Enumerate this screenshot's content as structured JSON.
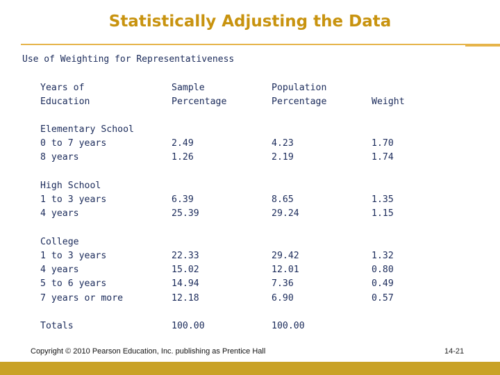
{
  "title": "Statistically Adjusting the Data",
  "subtitle": "Use of Weighting for Representativeness",
  "table": {
    "headers": {
      "education": [
        "Years of",
        "Education"
      ],
      "sample": [
        "Sample",
        "Percentage"
      ],
      "population": [
        "Population",
        "Percentage"
      ],
      "weight": "Weight"
    },
    "groups": [
      {
        "name": "Elementary School",
        "rows": [
          {
            "label": "0 to 7 years",
            "sample": "2.49",
            "population": "4.23",
            "weight": "1.70"
          },
          {
            "label": "8 years",
            "sample": "1.26",
            "population": "2.19",
            "weight": "1.74"
          }
        ]
      },
      {
        "name": "High School",
        "rows": [
          {
            "label": "1 to 3 years",
            "sample": "6.39",
            "population": "8.65",
            "weight": "1.35"
          },
          {
            "label": "4 years",
            "sample": "25.39",
            "population": "29.24",
            "weight": "1.15"
          }
        ]
      },
      {
        "name": "College",
        "rows": [
          {
            "label": "1 to 3 years",
            "sample": "22.33",
            "population": "29.42",
            "weight": "1.32"
          },
          {
            "label": "4 years",
            "sample": "15.02",
            "population": "12.01",
            "weight": "0.80"
          },
          {
            "label": "5 to 6 years",
            "sample": "14.94",
            "population": "7.36",
            "weight": "0.49"
          },
          {
            "label": "7 years or more",
            "sample": "12.18",
            "population": "6.90",
            "weight": "0.57"
          }
        ]
      }
    ],
    "totals": {
      "label": "Totals",
      "sample": "100.00",
      "population": "100.00"
    }
  },
  "footer": {
    "copyright": "Copyright © 2010 Pearson Education, Inc. publishing as Prentice Hall",
    "slide_number": "14-21"
  },
  "colors": {
    "title": "#c8930f",
    "text": "#1a2a5a",
    "accent": "#c9a227"
  }
}
